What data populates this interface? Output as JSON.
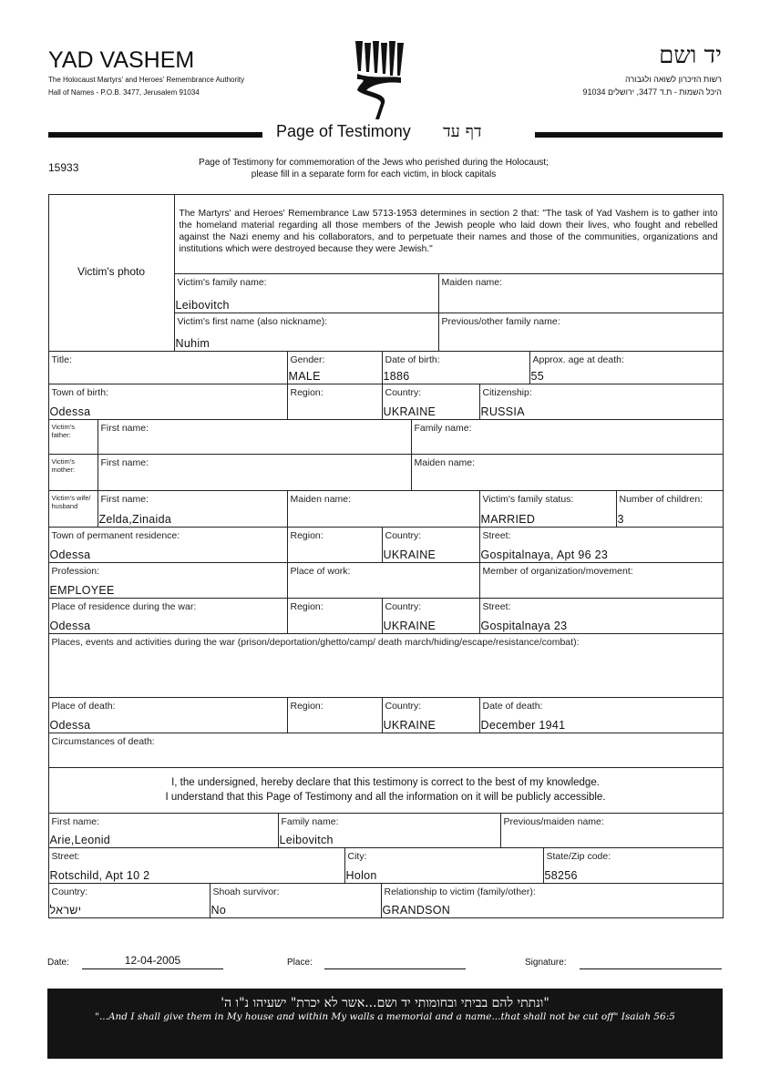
{
  "header": {
    "org_name": "YAD VASHEM",
    "org_subtitle": "The Holocaust Martyrs' and Heroes' Remembrance Authority",
    "org_address": "Hall of Names - P.O.B. 3477, Jerusalem 91034",
    "org_name_hebrew": "יד ושם",
    "org_subtitle_hebrew": "רשות הזיכרון לשואה ולגבורה",
    "org_address_hebrew": "היכל השמות - ת.ד 3477, ירושלים 91034",
    "title": "Page of Testimony",
    "title_hebrew": "דף עד",
    "form_number": "15933",
    "intro_line1": "Page of Testimony for commemoration of the Jews who perished during the Holocaust;",
    "intro_line2": "please fill in a separate form for each victim, in block capitals"
  },
  "victim_photo_label": "Victim's photo",
  "law_text": "The Martyrs' and Heroes' Remembrance Law 5713-1953 determines in section 2 that: \"The task of Yad Vashem is to gather into the homeland material regarding all those members of the Jewish people who laid down their lives, who fought and rebelled against the Nazi enemy and his collaborators, and to perpetuate their names and those of the communities, organizations and institutions which were destroyed because they were Jewish.\"",
  "fields": {
    "family_name": {
      "label": "Victim's family name:",
      "value": "Leibovitch"
    },
    "maiden_name": {
      "label": "Maiden name:",
      "value": ""
    },
    "first_name": {
      "label": "Victim's first name (also nickname):",
      "value": "Nuhim"
    },
    "prev_family_name": {
      "label": "Previous/other family name:",
      "value": ""
    },
    "title": {
      "label": "Title:",
      "value": ""
    },
    "gender": {
      "label": "Gender:",
      "value": "MALE"
    },
    "dob": {
      "label": "Date of birth:",
      "value": "1886"
    },
    "age": {
      "label": "Approx. age at death:",
      "value": "55"
    },
    "birth_town": {
      "label": "Town of birth:",
      "value": "Odessa"
    },
    "birth_region": {
      "label": "Region:",
      "value": ""
    },
    "birth_country": {
      "label": "Country:",
      "value": "UKRAINE"
    },
    "citizenship": {
      "label": "Citizenship:",
      "value": "RUSSIA"
    },
    "father_tag": {
      "label": "Victim's father:",
      "value": ""
    },
    "father_first": {
      "label": "First name:",
      "value": ""
    },
    "father_family": {
      "label": "Family name:",
      "value": ""
    },
    "mother_tag": {
      "label": "Victim's mother:",
      "value": ""
    },
    "mother_first": {
      "label": "First name:",
      "value": ""
    },
    "mother_maiden": {
      "label": "Maiden name:",
      "value": ""
    },
    "spouse_tag": {
      "label": "Victim's wife/ husband",
      "value": ""
    },
    "spouse_first": {
      "label": "First name:",
      "value": "Zelda,Zinaida"
    },
    "spouse_maiden": {
      "label": "Maiden name:",
      "value": ""
    },
    "family_status": {
      "label": "Victim's family status:",
      "value": "MARRIED"
    },
    "children": {
      "label": "Number of children:",
      "value": "3"
    },
    "res_town": {
      "label": "Town of permanent residence:",
      "value": "Odessa"
    },
    "res_region": {
      "label": "Region:",
      "value": ""
    },
    "res_country": {
      "label": "Country:",
      "value": "UKRAINE"
    },
    "res_street": {
      "label": "Street:",
      "value": "Gospitalnaya, Apt 96 23"
    },
    "profession": {
      "label": "Profession:",
      "value": "EMPLOYEE"
    },
    "workplace": {
      "label": "Place of work:",
      "value": ""
    },
    "organization": {
      "label": "Member of organization/movement:",
      "value": ""
    },
    "war_town": {
      "label": "Place of residence during the war:",
      "value": "Odessa"
    },
    "war_region": {
      "label": "Region:",
      "value": ""
    },
    "war_country": {
      "label": "Country:",
      "value": "UKRAINE"
    },
    "war_street": {
      "label": "Street:",
      "value": "Gospitalnaya 23"
    },
    "war_events": {
      "label": "Places, events and activities during the war (prison/deportation/ghetto/camp/ death march/hiding/escape/resistance/combat):",
      "value": ""
    },
    "death_place": {
      "label": "Place of death:",
      "value": "Odessa"
    },
    "death_region": {
      "label": "Region:",
      "value": ""
    },
    "death_country": {
      "label": "Country:",
      "value": "UKRAINE"
    },
    "death_date": {
      "label": "Date of death:",
      "value": "December 1941"
    },
    "death_circ": {
      "label": "Circumstances of death:",
      "value": ""
    },
    "sub_first": {
      "label": "First name:",
      "value": "Arie,Leonid"
    },
    "sub_family": {
      "label": "Family name:",
      "value": "Leibovitch"
    },
    "sub_prev": {
      "label": "Previous/maiden name:",
      "value": ""
    },
    "sub_street": {
      "label": "Street:",
      "value": "Rotschild, Apt 10 2"
    },
    "sub_city": {
      "label": "City:",
      "value": "Holon"
    },
    "sub_zip": {
      "label": "State/Zip code:",
      "value": "58256"
    },
    "sub_country": {
      "label": "Country:",
      "value": "ישראל"
    },
    "sub_survivor": {
      "label": "Shoah survivor:",
      "value": "No"
    },
    "sub_relation": {
      "label": "Relationship to victim (family/other):",
      "value": "GRANDSON"
    }
  },
  "declaration": {
    "line1": "I, the undersigned, hereby declare that this testimony is correct to the best of my knowledge.",
    "line2": "I understand that this Page of Testimony and all the information on it will be publicly accessible."
  },
  "signoff": {
    "date_label": "Date:",
    "date_value": "12-04-2005",
    "place_label": "Place:",
    "place_value": "",
    "signature_label": "Signature:"
  },
  "banner": {
    "hebrew": "\"ונתתי להם בביתי ובחומותי יד ושם...אשר לא יכרת\" ישעיהו נ\"ו ה'",
    "english": "\"...And I shall give them in My house and within My walls a memorial and a name...that shall not be cut off\" Isaiah 56:5"
  }
}
